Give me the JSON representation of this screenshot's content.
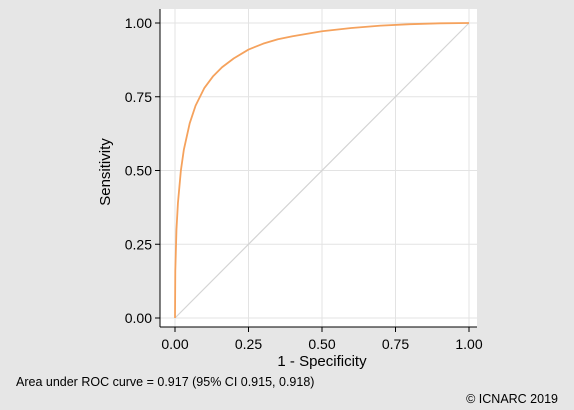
{
  "chart_data": {
    "type": "line",
    "xlabel": "1 - Specificity",
    "ylabel": "Sensitivity",
    "xlim": [
      0,
      1
    ],
    "ylim": [
      0,
      1
    ],
    "xticks": [
      "0.00",
      "0.25",
      "0.50",
      "0.75",
      "1.00"
    ],
    "yticks": [
      "0.00",
      "0.25",
      "0.50",
      "0.75",
      "1.00"
    ],
    "grid": true,
    "series": [
      {
        "color": "#f5a25d",
        "x": [
          0,
          0.001,
          0.005,
          0.01,
          0.02,
          0.03,
          0.05,
          0.07,
          0.1,
          0.13,
          0.16,
          0.2,
          0.25,
          0.3,
          0.35,
          0.4,
          0.5,
          0.6,
          0.7,
          0.8,
          0.9,
          1.0
        ],
        "y": [
          0,
          0.16,
          0.3,
          0.39,
          0.5,
          0.57,
          0.66,
          0.72,
          0.78,
          0.82,
          0.85,
          0.88,
          0.91,
          0.93,
          0.945,
          0.955,
          0.972,
          0.983,
          0.991,
          0.996,
          0.999,
          1.0
        ]
      },
      {
        "color": "#d4d4d4",
        "x": [
          0,
          1
        ],
        "y": [
          0,
          1
        ]
      }
    ]
  },
  "footer": {
    "auc_text": "Area under ROC curve = 0.917 (95% CI 0.915, 0.918)",
    "copyright": "© ICNARC 2019"
  }
}
